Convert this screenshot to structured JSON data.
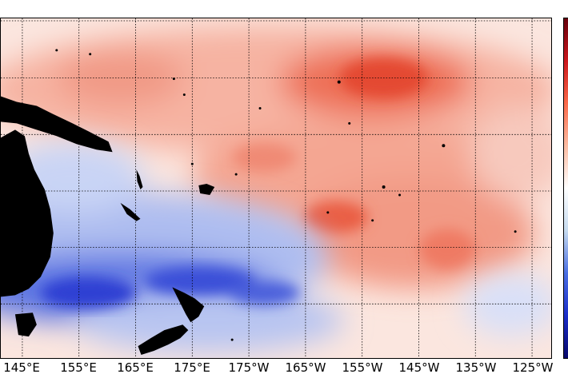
{
  "map": {
    "longitude_labels": [
      "145°E",
      "155°E",
      "165°E",
      "175°E",
      "175°W",
      "165°W",
      "155°W",
      "145°W",
      "135°W",
      "125°W"
    ],
    "colors": {
      "warm_anomaly": "#e8412b",
      "cold_anomaly": "#2a3fd6",
      "neutral": "#ffffff",
      "land": "#000000",
      "gridline": "#000000"
    },
    "colorbar": {
      "colors_top_to_bottom": [
        "#67000d",
        "#cb181d",
        "#fb6a4a",
        "#fcbba1",
        "#ffffff",
        "#c6dbef",
        "#4a6fe3",
        "#1b2ec9",
        "#08086b"
      ]
    }
  }
}
